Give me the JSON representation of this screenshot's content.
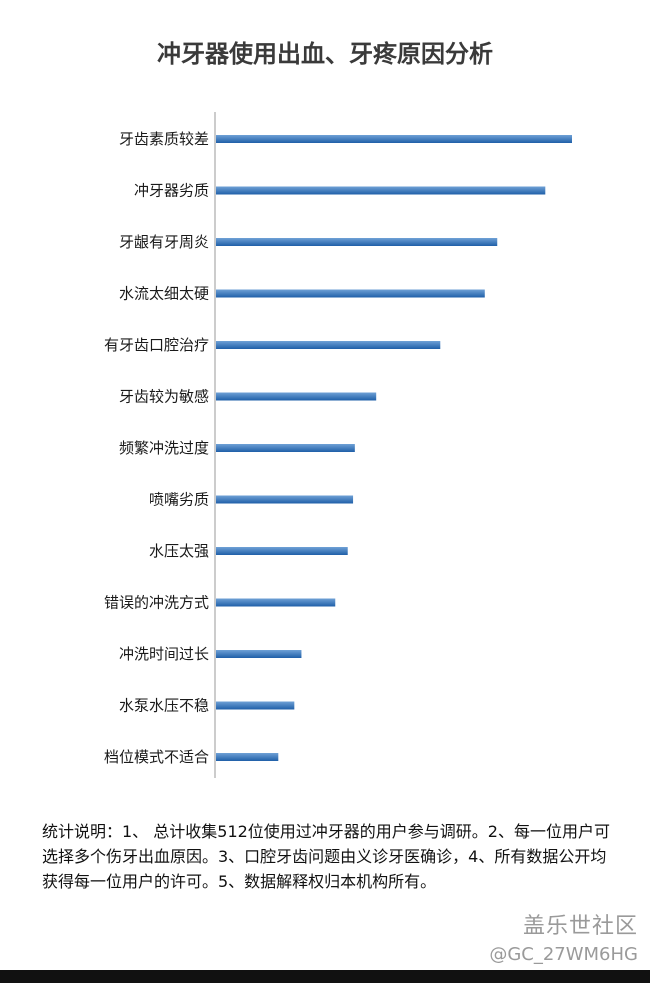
{
  "chart_data": {
    "type": "bar",
    "orientation": "horizontal",
    "title": "冲牙器使用出血、牙疼原因分析",
    "categories": [
      "牙齿素质较差",
      "冲牙器劣质",
      "牙龈有牙周炎",
      "水流太细太硬",
      "有牙齿口腔治疗",
      "牙齿较为敏感",
      "频繁冲洗过度",
      "喷嘴劣质",
      "水压太强",
      "错误的冲洗方式",
      "冲洗时间过长",
      "水泵水压不稳",
      "档位模式不适合"
    ],
    "values": [
      100,
      92.5,
      79,
      75.5,
      63,
      45,
      39,
      38.5,
      37,
      33.5,
      24,
      22,
      17.5
    ],
    "xlim": [
      0,
      100
    ],
    "grid": false,
    "bar_color": "#1f5fa8",
    "bar_highlight_color": "#6fa1d6"
  },
  "note": "统计说明：1、 总计收集512位使用过冲牙器的用户参与调研。2、每一位用户可选择多个伤牙出血原因。3、口腔牙齿问题由义诊牙医确诊，4、所有数据公开均获得每一位用户的许可。5、数据解释权归本机构所有。",
  "watermark": {
    "brand": "盖乐世社区",
    "user": "@GC_27WM6HG"
  }
}
